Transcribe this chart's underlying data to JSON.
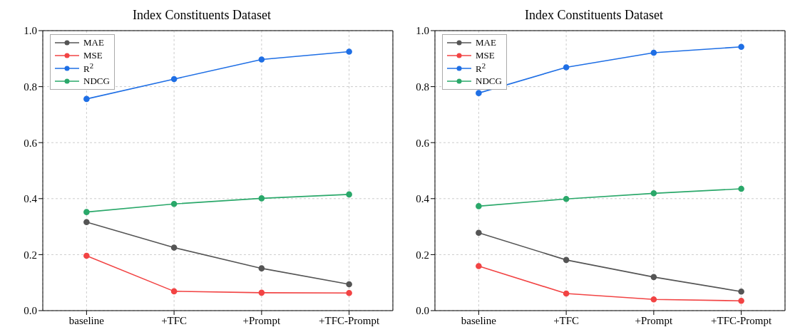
{
  "chart_data": [
    {
      "type": "line",
      "title": "Index Constituents Dataset",
      "categories": [
        "baseline",
        "+TFC",
        "+Prompt",
        "+TFC-Prompt"
      ],
      "ylim": [
        0,
        1
      ],
      "yticks": [
        {
          "value": 0,
          "label": "0.0"
        },
        {
          "value": 0.2,
          "label": "0.2"
        },
        {
          "value": 0.4,
          "label": "0.4"
        },
        {
          "value": 0.6,
          "label": "0.6"
        },
        {
          "value": 0.8,
          "label": "0.8"
        },
        {
          "value": 1,
          "label": "1.0"
        }
      ],
      "grid": true,
      "legend": "top left",
      "marker": "circle",
      "line_style": "solid",
      "series": [
        {
          "name": "MAE",
          "color": "#555555",
          "values": [
            0.316,
            0.225,
            0.151,
            0.094
          ]
        },
        {
          "name": "MSE",
          "color": "#f24444",
          "values": [
            0.196,
            0.069,
            0.064,
            0.063
          ]
        },
        {
          "name": "R$^{2}$",
          "color": "#1f6fe5",
          "values": [
            0.756,
            0.827,
            0.897,
            0.925
          ]
        },
        {
          "name": "NDCG",
          "color": "#2aa86a",
          "values": [
            0.352,
            0.381,
            0.401,
            0.415
          ]
        }
      ]
    },
    {
      "type": "line",
      "title": "Index Constituents Dataset",
      "categories": [
        "baseline",
        "+TFC",
        "+Prompt",
        "+TFC-Prompt"
      ],
      "ylim": [
        0,
        1
      ],
      "yticks": [
        {
          "value": 0,
          "label": "0.0"
        },
        {
          "value": 0.2,
          "label": "0.2"
        },
        {
          "value": 0.4,
          "label": "0.4"
        },
        {
          "value": 0.6,
          "label": "0.6"
        },
        {
          "value": 0.8,
          "label": "0.8"
        },
        {
          "value": 1,
          "label": "1.0"
        }
      ],
      "grid": true,
      "legend": "top left",
      "marker": "circle",
      "line_style": "solid",
      "series": [
        {
          "name": "MAE",
          "color": "#555555",
          "values": [
            0.278,
            0.181,
            0.12,
            0.068
          ]
        },
        {
          "name": "MSE",
          "color": "#f24444",
          "values": [
            0.159,
            0.061,
            0.04,
            0.035
          ]
        },
        {
          "name": "R$^{2}$",
          "color": "#1f6fe5",
          "values": [
            0.777,
            0.869,
            0.921,
            0.942
          ]
        },
        {
          "name": "NDCG",
          "color": "#2aa86a",
          "values": [
            0.373,
            0.399,
            0.419,
            0.435
          ]
        }
      ]
    }
  ]
}
